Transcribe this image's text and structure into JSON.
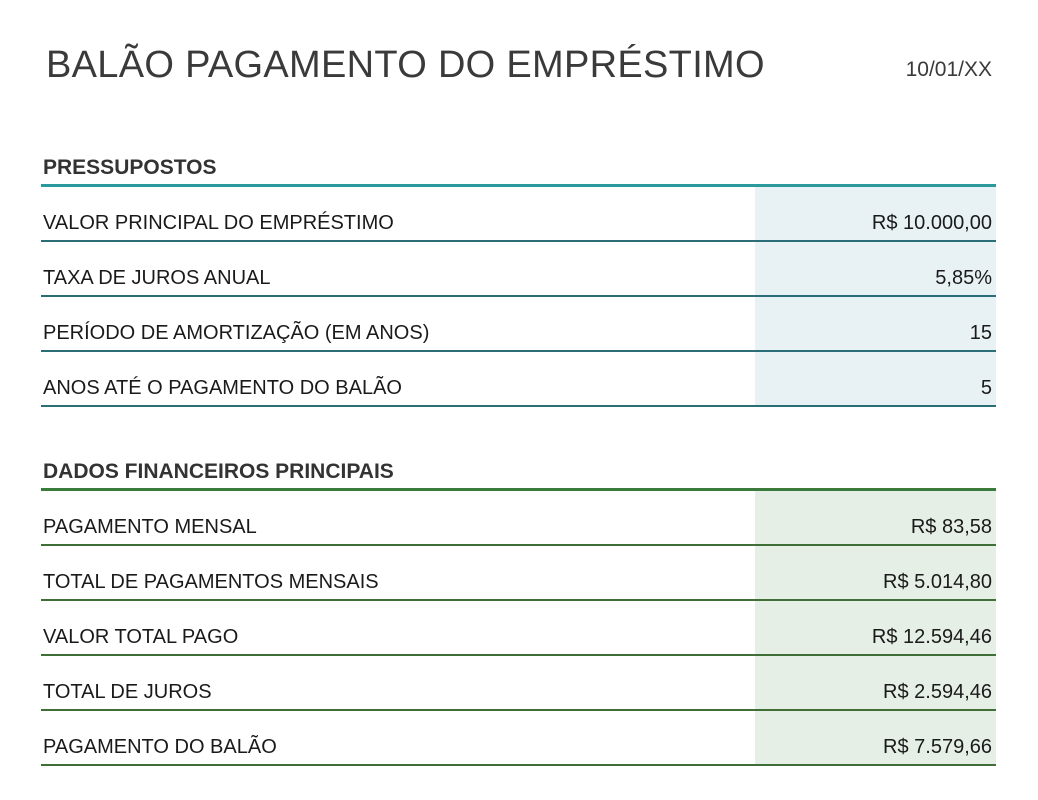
{
  "header": {
    "title": "BALÃO PAGAMENTO DO EMPRÉSTIMO",
    "date": "10/01/XX"
  },
  "assumptions": {
    "heading": "PRESSUPOSTOS",
    "rows": [
      {
        "label": "VALOR PRINCIPAL DO EMPRÉSTIMO",
        "value": "R$ 10.000,00"
      },
      {
        "label": "TAXA DE JUROS ANUAL",
        "value": "5,85%"
      },
      {
        "label": "PERÍODO DE AMORTIZAÇÃO (EM ANOS)",
        "value": "15"
      },
      {
        "label": "ANOS ATÉ O PAGAMENTO DO BALÃO",
        "value": "5"
      }
    ]
  },
  "financials": {
    "heading": "DADOS FINANCEIROS PRINCIPAIS",
    "rows": [
      {
        "label": "PAGAMENTO MENSAL",
        "value": "R$ 83,58"
      },
      {
        "label": "TOTAL DE PAGAMENTOS MENSAIS",
        "value": "R$ 5.014,80"
      },
      {
        "label": "VALOR TOTAL PAGO",
        "value": "R$ 12.594,46"
      },
      {
        "label": "TOTAL DE JUROS",
        "value": "R$ 2.594,46"
      },
      {
        "label": "PAGAMENTO DO BALÃO",
        "value": "R$ 7.579,66"
      }
    ]
  },
  "colors": {
    "assumptions_accent": "#2a9a9c",
    "assumptions_value_bg": "#e8f2f5",
    "financials_accent": "#3a7a3a",
    "financials_value_bg": "#e6efe6"
  }
}
